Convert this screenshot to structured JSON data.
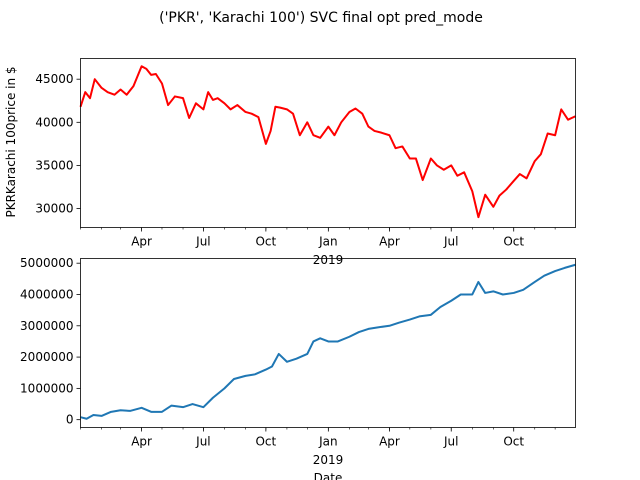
{
  "chart_data": [
    {
      "type": "line",
      "title": "('PKR', 'Karachi 100') SVC final opt pred_mode",
      "xlabel": "2019",
      "ylabel": "PKRKarachi 100price in $",
      "x_ticks": [
        "Apr",
        "Jul",
        "Oct",
        "Jan",
        "Apr",
        "Jul",
        "Oct"
      ],
      "x_tick_dates": [
        "2018-04-01",
        "2018-07-01",
        "2018-10-01",
        "2019-01-01",
        "2019-04-01",
        "2019-07-01",
        "2019-10-01"
      ],
      "xlim": [
        "2018-01-01",
        "2019-12-31"
      ],
      "y_ticks": [
        "30000",
        "35000",
        "40000",
        "45000"
      ],
      "ylim": [
        27800,
        47400
      ],
      "grid": false,
      "series": [
        {
          "color": "#ff0000",
          "x": [
            "2018-01-01",
            "2018-01-08",
            "2018-01-15",
            "2018-01-22",
            "2018-02-01",
            "2018-02-10",
            "2018-02-20",
            "2018-03-01",
            "2018-03-10",
            "2018-03-20",
            "2018-04-01",
            "2018-04-08",
            "2018-04-15",
            "2018-04-22",
            "2018-05-01",
            "2018-05-10",
            "2018-05-20",
            "2018-06-01",
            "2018-06-10",
            "2018-06-20",
            "2018-07-01",
            "2018-07-08",
            "2018-07-15",
            "2018-07-22",
            "2018-08-01",
            "2018-08-10",
            "2018-08-20",
            "2018-09-01",
            "2018-09-10",
            "2018-09-20",
            "2018-10-01",
            "2018-10-08",
            "2018-10-15",
            "2018-10-22",
            "2018-11-01",
            "2018-11-10",
            "2018-11-20",
            "2018-12-01",
            "2018-12-10",
            "2018-12-20",
            "2019-01-01",
            "2019-01-10",
            "2019-01-20",
            "2019-02-01",
            "2019-02-10",
            "2019-02-20",
            "2019-03-01",
            "2019-03-10",
            "2019-03-20",
            "2019-04-01",
            "2019-04-10",
            "2019-04-20",
            "2019-05-01",
            "2019-05-10",
            "2019-05-20",
            "2019-06-01",
            "2019-06-10",
            "2019-06-20",
            "2019-07-01",
            "2019-07-10",
            "2019-07-20",
            "2019-08-01",
            "2019-08-10",
            "2019-08-20",
            "2019-09-01",
            "2019-09-10",
            "2019-09-20",
            "2019-10-01",
            "2019-10-10",
            "2019-10-20",
            "2019-11-01",
            "2019-11-10",
            "2019-11-20",
            "2019-12-01",
            "2019-12-10",
            "2019-12-20",
            "2019-12-31"
          ],
          "y": [
            41800,
            43500,
            42800,
            45000,
            44000,
            43500,
            43200,
            43800,
            43200,
            44200,
            46500,
            46200,
            45500,
            45600,
            44500,
            42000,
            43000,
            42800,
            40500,
            42200,
            41500,
            43500,
            42600,
            42800,
            42200,
            41500,
            42000,
            41200,
            41000,
            40600,
            37500,
            39000,
            41800,
            41700,
            41500,
            41000,
            38500,
            40000,
            38500,
            38200,
            39500,
            38500,
            40000,
            41200,
            41600,
            41000,
            39500,
            39000,
            38800,
            38500,
            37000,
            37200,
            35800,
            35800,
            33300,
            35800,
            35000,
            34500,
            35000,
            33800,
            34200,
            32000,
            29000,
            31600,
            30200,
            31500,
            32200,
            33200,
            34000,
            33500,
            35500,
            36300,
            38700,
            38500,
            41500,
            40300,
            40700
          ]
        }
      ]
    },
    {
      "type": "line",
      "xlabel": "2019",
      "xlabel2": "Date",
      "x_ticks": [
        "Apr",
        "Jul",
        "Oct",
        "Jan",
        "Apr",
        "Jul",
        "Oct"
      ],
      "x_tick_dates": [
        "2018-04-01",
        "2018-07-01",
        "2018-10-01",
        "2019-01-01",
        "2019-04-01",
        "2019-07-01",
        "2019-10-01"
      ],
      "xlim": [
        "2018-01-01",
        "2019-12-31"
      ],
      "y_ticks": [
        "0",
        "1000000",
        "2000000",
        "3000000",
        "4000000",
        "5000000"
      ],
      "ylim": [
        -250000,
        5150000
      ],
      "grid": false,
      "series": [
        {
          "color": "#1f77b4",
          "x": [
            "2018-01-01",
            "2018-01-10",
            "2018-01-20",
            "2018-02-01",
            "2018-02-15",
            "2018-03-01",
            "2018-03-15",
            "2018-04-01",
            "2018-04-15",
            "2018-05-01",
            "2018-05-15",
            "2018-06-01",
            "2018-06-15",
            "2018-07-01",
            "2018-07-15",
            "2018-08-01",
            "2018-08-15",
            "2018-09-01",
            "2018-09-15",
            "2018-10-01",
            "2018-10-10",
            "2018-10-20",
            "2018-11-01",
            "2018-11-15",
            "2018-12-01",
            "2018-12-10",
            "2018-12-20",
            "2019-01-01",
            "2019-01-15",
            "2019-02-01",
            "2019-02-15",
            "2019-03-01",
            "2019-03-15",
            "2019-04-01",
            "2019-04-15",
            "2019-05-01",
            "2019-05-15",
            "2019-06-01",
            "2019-06-15",
            "2019-07-01",
            "2019-07-15",
            "2019-08-01",
            "2019-08-10",
            "2019-08-20",
            "2019-09-01",
            "2019-09-15",
            "2019-10-01",
            "2019-10-15",
            "2019-11-01",
            "2019-11-15",
            "2019-12-01",
            "2019-12-15",
            "2019-12-31"
          ],
          "y": [
            80000,
            30000,
            150000,
            120000,
            250000,
            300000,
            280000,
            380000,
            250000,
            250000,
            450000,
            400000,
            500000,
            400000,
            700000,
            1000000,
            1300000,
            1400000,
            1450000,
            1600000,
            1700000,
            2100000,
            1850000,
            1950000,
            2100000,
            2500000,
            2600000,
            2500000,
            2500000,
            2650000,
            2800000,
            2900000,
            2950000,
            3000000,
            3100000,
            3200000,
            3300000,
            3350000,
            3600000,
            3800000,
            4000000,
            4000000,
            4400000,
            4050000,
            4100000,
            4000000,
            4050000,
            4150000,
            4400000,
            4600000,
            4750000,
            4850000,
            4950000
          ]
        }
      ]
    }
  ]
}
